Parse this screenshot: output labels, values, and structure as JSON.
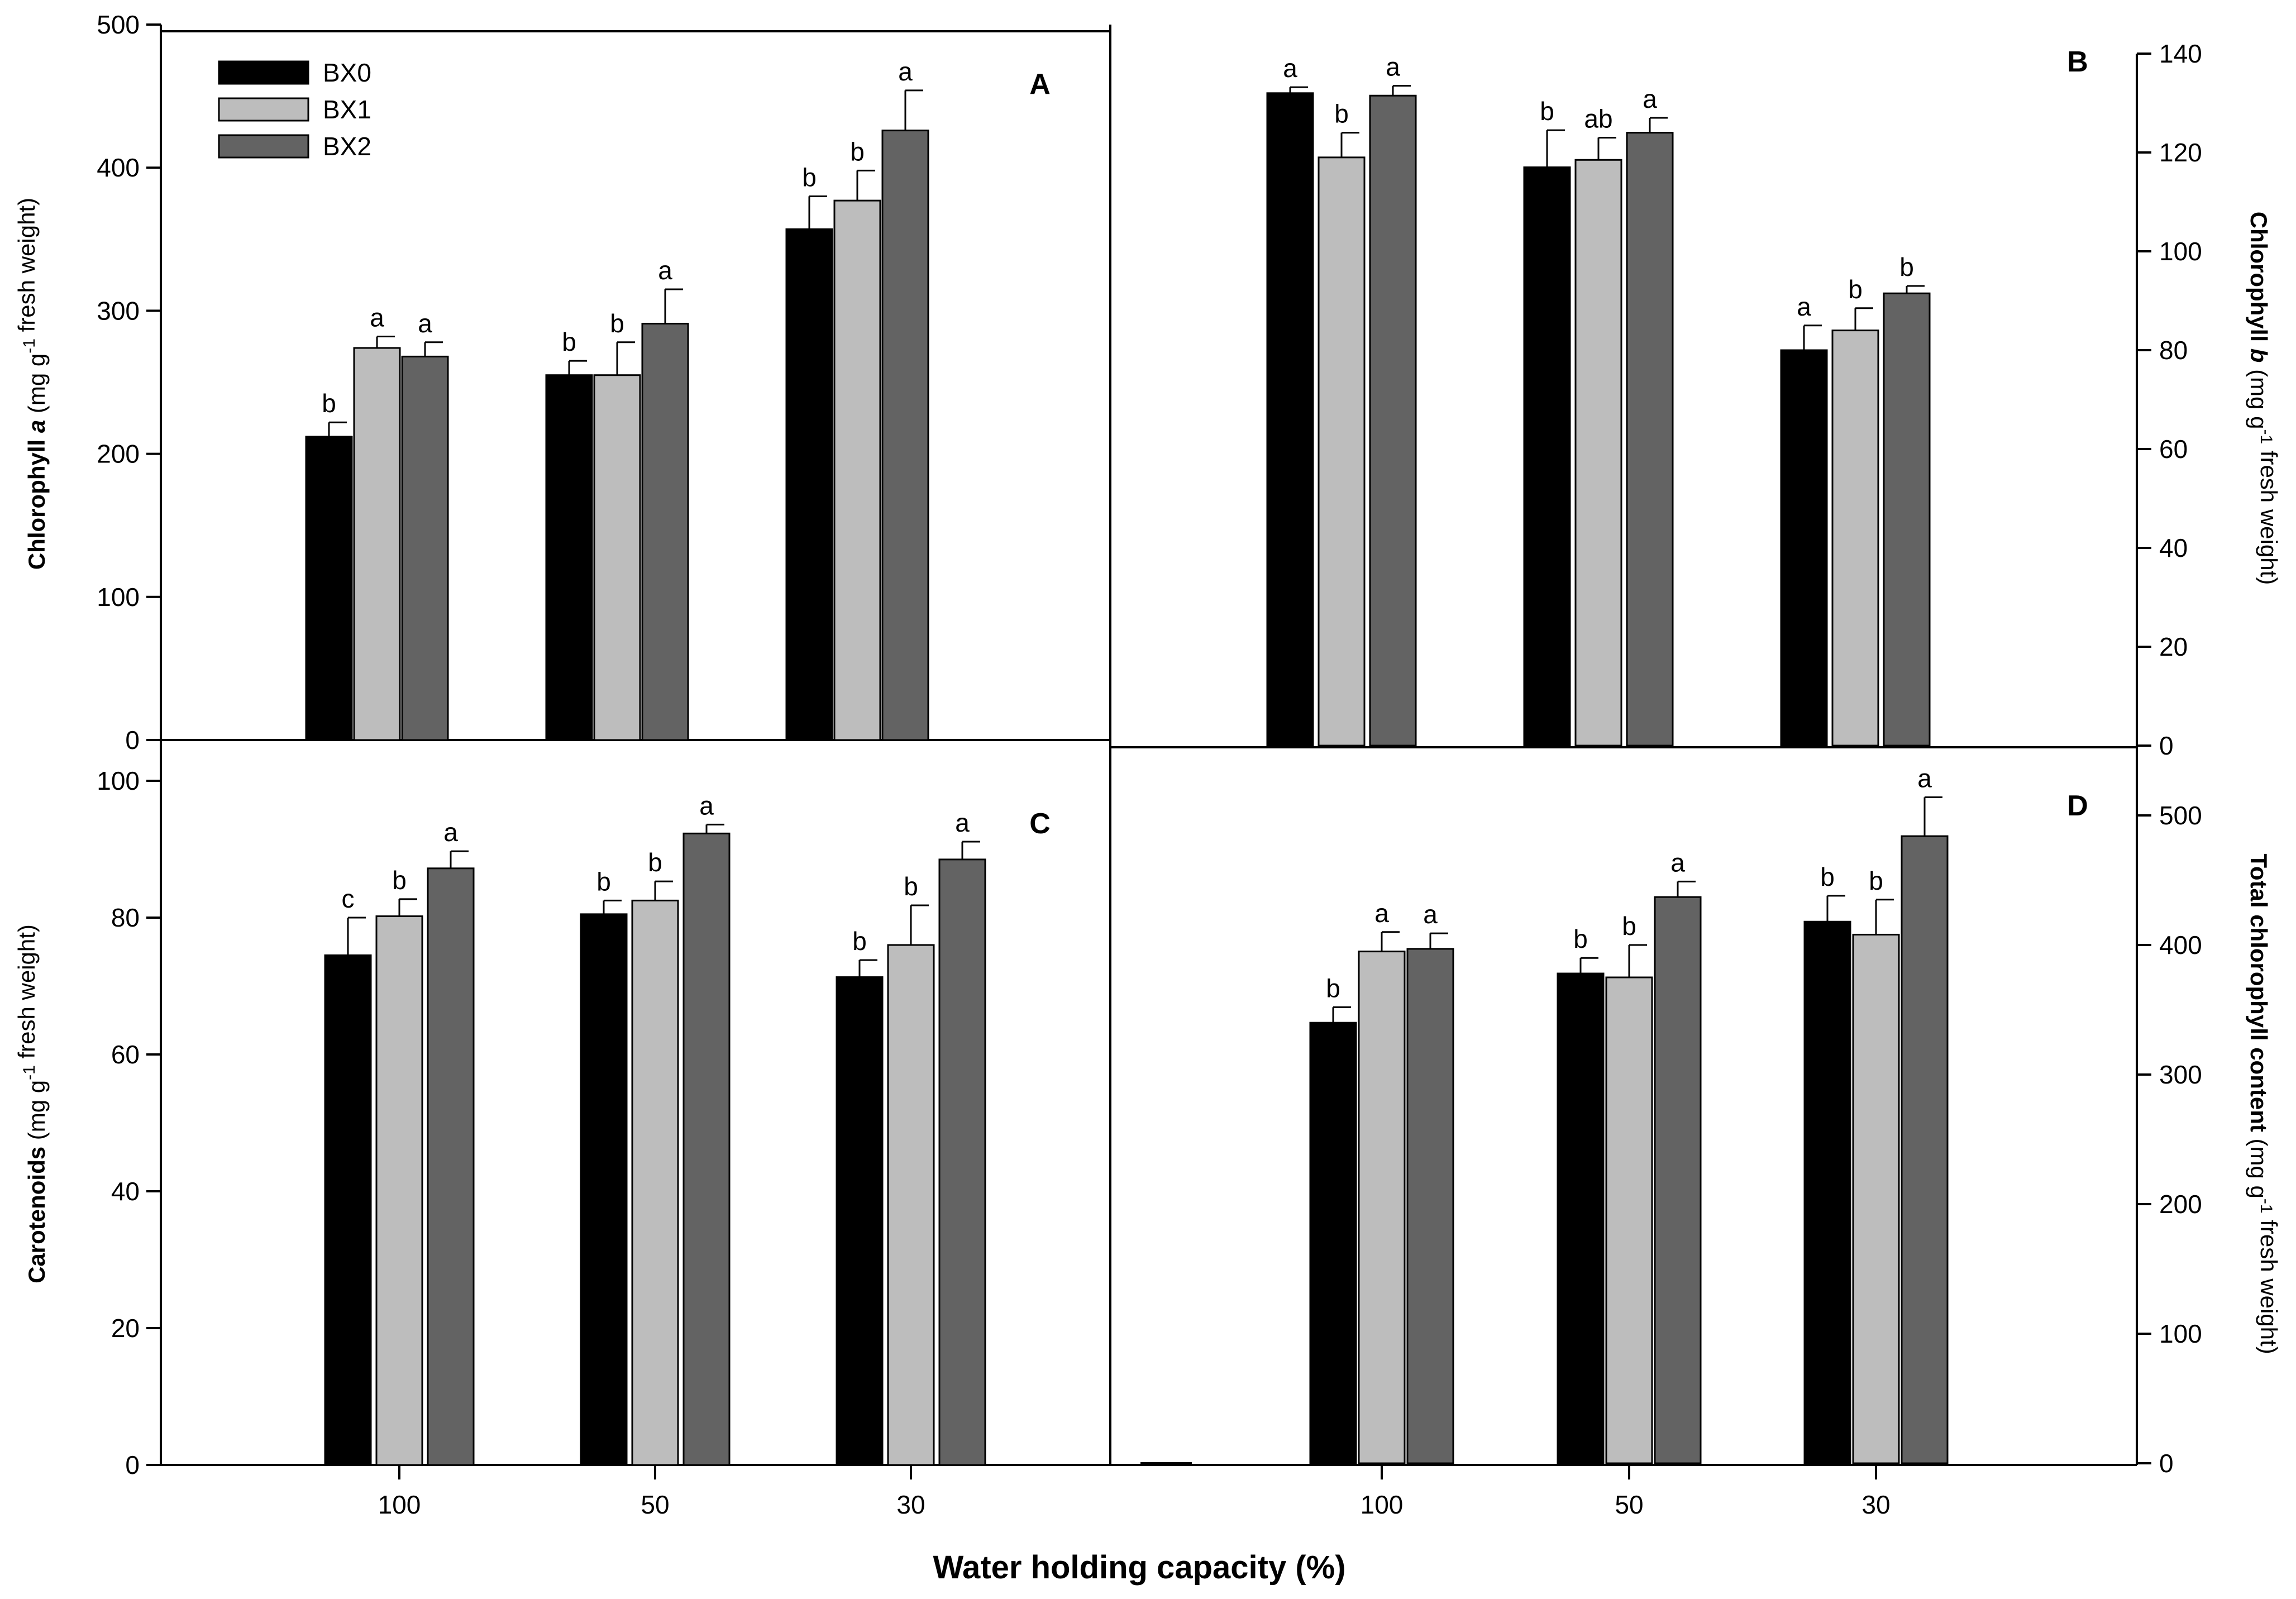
{
  "chart_data": [
    {
      "panel": "A",
      "type": "bar",
      "categories": [
        "100",
        "50",
        "30"
      ],
      "ylim": [
        0,
        500
      ],
      "yticks": [
        0,
        100,
        200,
        300,
        400,
        500
      ],
      "ylabel_parts": [
        {
          "text": "Chlorophyll ",
          "style": "bold"
        },
        {
          "text": "a",
          "style": "bold-italic"
        },
        {
          "text": " (mg g",
          "style": "normal"
        },
        {
          "text": "-1",
          "style": "sup"
        },
        {
          "text": " fresh weight)",
          "style": "normal"
        }
      ],
      "series": [
        {
          "name": "BX0",
          "color": "#000000",
          "values": [
            212,
            255,
            357
          ],
          "errors": [
            10,
            10,
            23
          ],
          "letters": [
            "b",
            "b",
            "b"
          ]
        },
        {
          "name": "BX1",
          "color": "#bdbdbd",
          "values": [
            274,
            255,
            377
          ],
          "errors": [
            8,
            23,
            21
          ],
          "letters": [
            "a",
            "b",
            "b"
          ]
        },
        {
          "name": "BX2",
          "color": "#636363",
          "values": [
            268,
            291,
            426
          ],
          "errors": [
            10,
            24,
            28
          ],
          "letters": [
            "a",
            "a",
            "a"
          ]
        }
      ]
    },
    {
      "panel": "B",
      "type": "bar",
      "categories": [
        "100",
        "50",
        "30"
      ],
      "ylim": [
        0,
        140
      ],
      "yticks": [
        0,
        20,
        40,
        60,
        80,
        100,
        120,
        140
      ],
      "ylabel_parts": [
        {
          "text": "Chlorophyll ",
          "style": "bold"
        },
        {
          "text": "b",
          "style": "bold-italic"
        },
        {
          "text": " (mg g",
          "style": "normal"
        },
        {
          "text": "-1",
          "style": "sup"
        },
        {
          "text": " fresh weight)",
          "style": "normal"
        }
      ],
      "series": [
        {
          "name": "BX0",
          "color": "#000000",
          "values": [
            132,
            117,
            80
          ],
          "errors": [
            1.2,
            7.5,
            5
          ],
          "letters": [
            "a",
            "b",
            "a"
          ]
        },
        {
          "name": "BX1",
          "color": "#bdbdbd",
          "values": [
            119,
            118.5,
            84
          ],
          "errors": [
            5,
            4.5,
            4.5
          ],
          "letters": [
            "b",
            "ab",
            "b"
          ]
        },
        {
          "name": "BX2",
          "color": "#636363",
          "values": [
            131.5,
            124,
            91.5
          ],
          "errors": [
            2,
            3,
            1.5
          ],
          "letters": [
            "a",
            "a",
            "b"
          ]
        }
      ]
    },
    {
      "panel": "C",
      "type": "bar",
      "categories": [
        "100",
        "50",
        "30"
      ],
      "ylim": [
        0,
        105
      ],
      "yticks": [
        0,
        20,
        40,
        60,
        80,
        100
      ],
      "ylabel_parts": [
        {
          "text": "Carotenoids",
          "style": "bold"
        },
        {
          "text": " (mg g",
          "style": "normal"
        },
        {
          "text": "-1",
          "style": "sup"
        },
        {
          "text": " fresh weight)",
          "style": "normal"
        }
      ],
      "series": [
        {
          "name": "BX0",
          "color": "#000000",
          "values": [
            74.5,
            80.5,
            71.3
          ],
          "errors": [
            5.5,
            2,
            2.5
          ],
          "letters": [
            "c",
            "b",
            "b"
          ]
        },
        {
          "name": "BX1",
          "color": "#bdbdbd",
          "values": [
            80.2,
            82.5,
            76
          ],
          "errors": [
            2.5,
            2.8,
            5.8
          ],
          "letters": [
            "b",
            "b",
            "b"
          ]
        },
        {
          "name": "BX2",
          "color": "#636363",
          "values": [
            87.2,
            92.3,
            88.5
          ],
          "errors": [
            2.5,
            1.3,
            2.6
          ],
          "letters": [
            "a",
            "a",
            "a"
          ]
        }
      ]
    },
    {
      "panel": "D",
      "type": "bar",
      "categories": [
        "100",
        "50",
        "30"
      ],
      "xlabel": "Water holding capacity (%)",
      "ylim": [
        0,
        550
      ],
      "yticks": [
        0,
        100,
        200,
        300,
        400,
        500
      ],
      "ylabel_parts": [
        {
          "text": "Total chlorophyll content",
          "style": "bold"
        },
        {
          "text": " (mg g",
          "style": "normal"
        },
        {
          "text": "-1",
          "style": "sup"
        },
        {
          "text": " fresh weight)",
          "style": "normal"
        }
      ],
      "series": [
        {
          "name": "BX0",
          "color": "#000000",
          "values": [
            340,
            378,
            418
          ],
          "errors": [
            12,
            12,
            20
          ],
          "letters": [
            "b",
            "b",
            "b"
          ]
        },
        {
          "name": "BX1",
          "color": "#bdbdbd",
          "values": [
            395,
            375,
            408
          ],
          "errors": [
            15,
            25,
            27
          ],
          "letters": [
            "a",
            "b",
            "b"
          ]
        },
        {
          "name": "BX2",
          "color": "#636363",
          "values": [
            397,
            437,
            484
          ],
          "errors": [
            12,
            12,
            30
          ],
          "letters": [
            "a",
            "a",
            "a"
          ]
        }
      ]
    }
  ],
  "legend": {
    "position": "top-left of panel A",
    "items": [
      {
        "name": "BX0",
        "color": "#000000"
      },
      {
        "name": "BX1",
        "color": "#bdbdbd"
      },
      {
        "name": "BX2",
        "color": "#636363"
      }
    ]
  }
}
